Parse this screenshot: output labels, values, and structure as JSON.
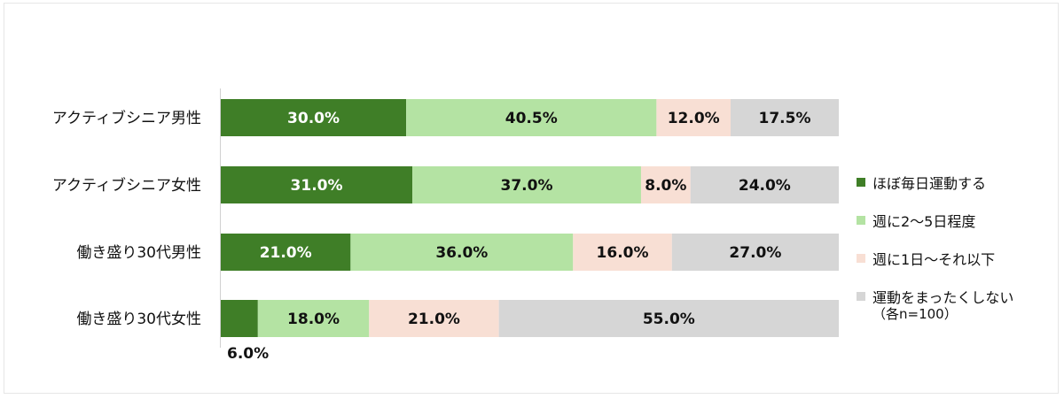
{
  "chart_data": {
    "type": "bar",
    "orientation": "horizontal",
    "stacked": true,
    "percent": true,
    "title": "",
    "xlabel": "",
    "ylabel": "",
    "xlim": [
      0,
      100
    ],
    "grid": false,
    "legend_position": "right",
    "categories": [
      "アクティブシニア男性",
      "アクティブシニア女性",
      "働き盛り30代男性",
      "働き盛り30代女性"
    ],
    "series": [
      {
        "name": "ほぼ毎日運動する",
        "color": "#3f7e27",
        "label_color": "#ffffff",
        "values": [
          30.0,
          31.0,
          21.0,
          6.0
        ],
        "labels": [
          "30.0%",
          "31.0%",
          "21.0%",
          "6.0%"
        ]
      },
      {
        "name": "週に2～5日程度",
        "color": "#b4e3a3",
        "label_color": "#111111",
        "values": [
          40.5,
          37.0,
          36.0,
          18.0
        ],
        "labels": [
          "40.5%",
          "37.0%",
          "36.0%",
          "18.0%"
        ]
      },
      {
        "name": "週に1日～それ以下",
        "color": "#f8dfd4",
        "label_color": "#111111",
        "values": [
          12.0,
          8.0,
          16.0,
          21.0
        ],
        "labels": [
          "12.0%",
          "8.0%",
          "16.0%",
          "21.0%"
        ]
      },
      {
        "name": "運動をまったくしない",
        "color": "#d6d6d6",
        "label_color": "#111111",
        "values": [
          17.5,
          24.0,
          27.0,
          55.0
        ],
        "labels": [
          "17.5%",
          "24.0%",
          "27.0%",
          "55.0%"
        ]
      }
    ],
    "note": "（各n=100）"
  }
}
